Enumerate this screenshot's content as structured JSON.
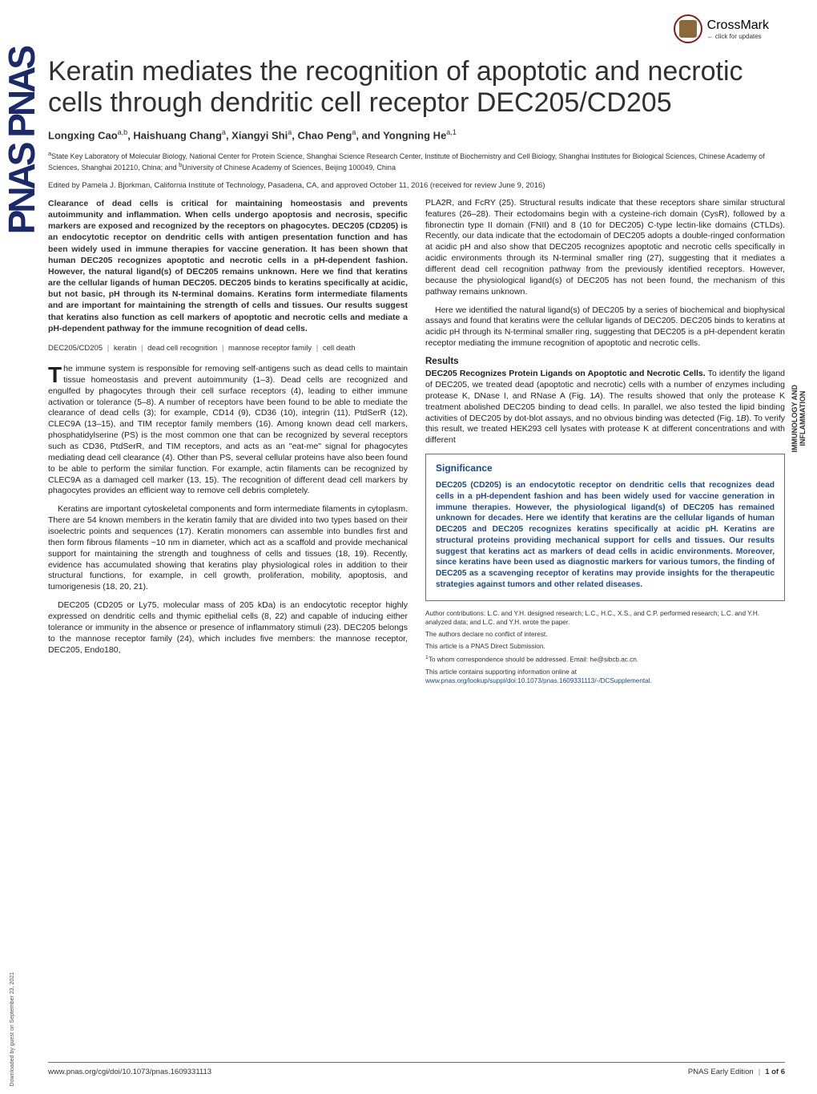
{
  "crossmark": {
    "label": "CrossMark",
    "sub": "← click for updates"
  },
  "pnas_side": "PNAS PNAS",
  "side_label": "IMMUNOLOGY AND\nINFLAMMATION",
  "download_note": "Downloaded by guest on September 23, 2021",
  "title": "Keratin mediates the recognition of apoptotic and necrotic cells through dendritic cell receptor DEC205/CD205",
  "authors_html": "Longxing Cao<sup>a,b</sup>, Haishuang Chang<sup>a</sup>, Xiangyi Shi<sup>a</sup>, Chao Peng<sup>a</sup>, and Yongning He<sup>a,1</sup>",
  "affiliations": "<sup>a</sup>State Key Laboratory of Molecular Biology, National Center for Protein Science, Shanghai Science Research Center, Institute of Biochemistry and Cell Biology, Shanghai Institutes for Biological Sciences, Chinese Academy of Sciences, Shanghai 201210, China; and <sup>b</sup>University of Chinese Academy of Sciences, Beijing 100049, China",
  "edited": "Edited by Pamela J. Bjorkman, California Institute of Technology, Pasadena, CA, and approved October 11, 2016 (received for review June 9, 2016)",
  "abstract": "Clearance of dead cells is critical for maintaining homeostasis and prevents autoimmunity and inflammation. When cells undergo apoptosis and necrosis, specific markers are exposed and recognized by the receptors on phagocytes. DEC205 (CD205) is an endocytotic receptor on dendritic cells with antigen presentation function and has been widely used in immune therapies for vaccine generation. It has been shown that human DEC205 recognizes apoptotic and necrotic cells in a pH-dependent fashion. However, the natural ligand(s) of DEC205 remains unknown. Here we find that keratins are the cellular ligands of human DEC205. DEC205 binds to keratins specifically at acidic, but not basic, pH through its N-terminal domains. Keratins form intermediate filaments and are important for maintaining the strength of cells and tissues. Our results suggest that keratins also function as cell markers of apoptotic and necrotic cells and mediate a pH-dependent pathway for the immune recognition of dead cells.",
  "keywords": [
    "DEC205/CD205",
    "keratin",
    "dead cell recognition",
    "mannose receptor family",
    "cell death"
  ],
  "left_body": [
    "<span class=\"dropcap\">T</span>he immune system is responsible for removing self-antigens such as dead cells to maintain tissue homeostasis and prevent autoimmunity (1–3). Dead cells are recognized and engulfed by phagocytes through their cell surface receptors (4), leading to either immune activation or tolerance (5–8). A number of receptors have been found to be able to mediate the clearance of dead cells (3); for example, CD14 (9), CD36 (10), integrin (11), PtdSerR (12), CLEC9A (13–15), and TIM receptor family members (16). Among known dead cell markers, phosphatidylserine (PS) is the most common one that can be recognized by several receptors such as CD36, PtdSerR, and TIM receptors, and acts as an \"eat-me\" signal for phagocytes mediating dead cell clearance (4). Other than PS, several cellular proteins have also been found to be able to perform the similar function. For example, actin filaments can be recognized by CLEC9A as a damaged cell marker (13, 15). The recognition of different dead cell markers by phagocytes provides an efficient way to remove cell debris completely.",
    "<span class=\"indent\"></span>Keratins are important cytoskeletal components and form intermediate filaments in cytoplasm. There are 54 known members in the keratin family that are divided into two types based on their isoelectric points and sequences (17). Keratin monomers can assemble into bundles first and then form fibrous filaments ~10 nm in diameter, which act as a scaffold and provide mechanical support for maintaining the strength and toughness of cells and tissues (18, 19). Recently, evidence has accumulated showing that keratins play physiological roles in addition to their structural functions, for example, in cell growth, proliferation, mobility, apoptosis, and tumorigenesis (18, 20, 21).",
    "<span class=\"indent\"></span>DEC205 (CD205 or Ly75, molecular mass of 205 kDa) is an endocytotic receptor highly expressed on dendritic cells and thymic epithelial cells (8, 22) and capable of inducing either tolerance or immunity in the absence or presence of inflammatory stimuli (23). DEC205 belongs to the mannose receptor family (24), which includes five members: the mannose receptor, DEC205, Endo180,"
  ],
  "right_intro": [
    "PLA2R, and FcRY (25). Structural results indicate that these receptors share similar structural features (26–28). Their ectodomains begin with a cysteine-rich domain (CysR), followed by a fibronectin type II domain (FNII) and 8 (10 for DEC205) C-type lectin-like domains (CTLDs). Recently, our data indicate that the ectodomain of DEC205 adopts a double-ringed conformation at acidic pH and also show that DEC205 recognizes apoptotic and necrotic cells specifically in acidic environments through its N-terminal smaller ring (27), suggesting that it mediates a different dead cell recognition pathway from the previously identified receptors. However, because the physiological ligand(s) of DEC205 has not been found, the mechanism of this pathway remains unknown.",
    "<span class=\"indent\"></span>Here we identified the natural ligand(s) of DEC205 by a series of biochemical and biophysical assays and found that keratins were the cellular ligands of DEC205. DEC205 binds to keratins at acidic pH through its N-terminal smaller ring, suggesting that DEC205 is a pH-dependent keratin receptor mediating the immune recognition of apoptotic and necrotic cells."
  ],
  "results_head": "Results",
  "results_subhead": "DEC205 Recognizes Protein Ligands on Apoptotic and Necrotic Cells.",
  "results_body": "To identify the ligand of DEC205, we treated dead (apoptotic and necrotic) cells with a number of enzymes including protease K, DNase I, and RNase A (Fig. 1<i>A</i>). The results showed that only the protease K treatment abolished DEC205 binding to dead cells. In parallel, we also tested the lipid binding activities of DEC205 by dot-blot assays, and no obvious binding was detected (Fig. 1<i>B</i>). To verify this result, we treated HEK293 cell lysates with protease K at different concentrations and with different",
  "significance": {
    "title": "Significance",
    "text": "DEC205 (CD205) is an endocytotic receptor on dendritic cells that recognizes dead cells in a pH-dependent fashion and has been widely used for vaccine generation in immune therapies. However, the physiological ligand(s) of DEC205 has remained unknown for decades. Here we identify that keratins are the cellular ligands of human DEC205 and DEC205 recognizes keratins specifically at acidic pH. Keratins are structural proteins providing mechanical support for cells and tissues. Our results suggest that keratins act as markers of dead cells in acidic environments. Moreover, since keratins have been used as diagnostic markers for various tumors, the finding of DEC205 as a scavenging receptor of keratins may provide insights for the therapeutic strategies against tumors and other related diseases."
  },
  "footnotes": {
    "contrib": "Author contributions: L.C. and Y.H. designed research; L.C., H.C., X.S., and C.P. performed research; L.C. and Y.H. analyzed data; and L.C. and Y.H. wrote the paper.",
    "conflict": "The authors declare no conflict of interest.",
    "submission": "This article is a PNAS Direct Submission.",
    "corr": "<sup>1</sup>To whom correspondence should be addressed. Email: he@sibcb.ac.cn.",
    "supp": "This article contains supporting information online at ",
    "supp_link": "www.pnas.org/lookup/suppl/doi:10.1073/pnas.1609331113/-/DCSupplemental"
  },
  "footer": {
    "doi": "www.pnas.org/cgi/doi/10.1073/pnas.1609331113",
    "right": "PNAS Early Edition",
    "page": "1 of 6"
  },
  "colors": {
    "link": "#1a4a8a",
    "sig_text": "#1a4a8a",
    "body": "#202020",
    "rule": "#707070"
  }
}
